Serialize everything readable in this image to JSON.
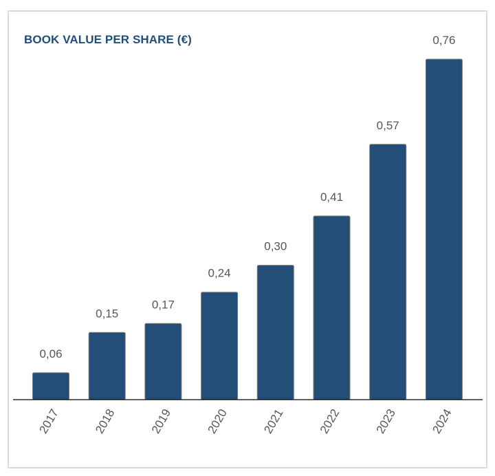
{
  "chart_data": {
    "type": "bar",
    "title": "BOOK VALUE PER SHARE (€)",
    "categories": [
      "2017",
      "2018",
      "2019",
      "2020",
      "2021",
      "2022",
      "2023",
      "2024"
    ],
    "values": [
      0.06,
      0.15,
      0.17,
      0.24,
      0.3,
      0.41,
      0.57,
      0.76
    ],
    "value_labels": [
      "0,06",
      "0,15",
      "0,17",
      "0,24",
      "0,30",
      "0,41",
      "0,57",
      "0,76"
    ],
    "xlabel": "",
    "ylabel": "",
    "ylim": [
      0,
      0.76
    ],
    "grid": false,
    "legend": "none",
    "colors": {
      "bar": "#224e78",
      "title": "#1f4e79",
      "label": "#555555"
    }
  }
}
